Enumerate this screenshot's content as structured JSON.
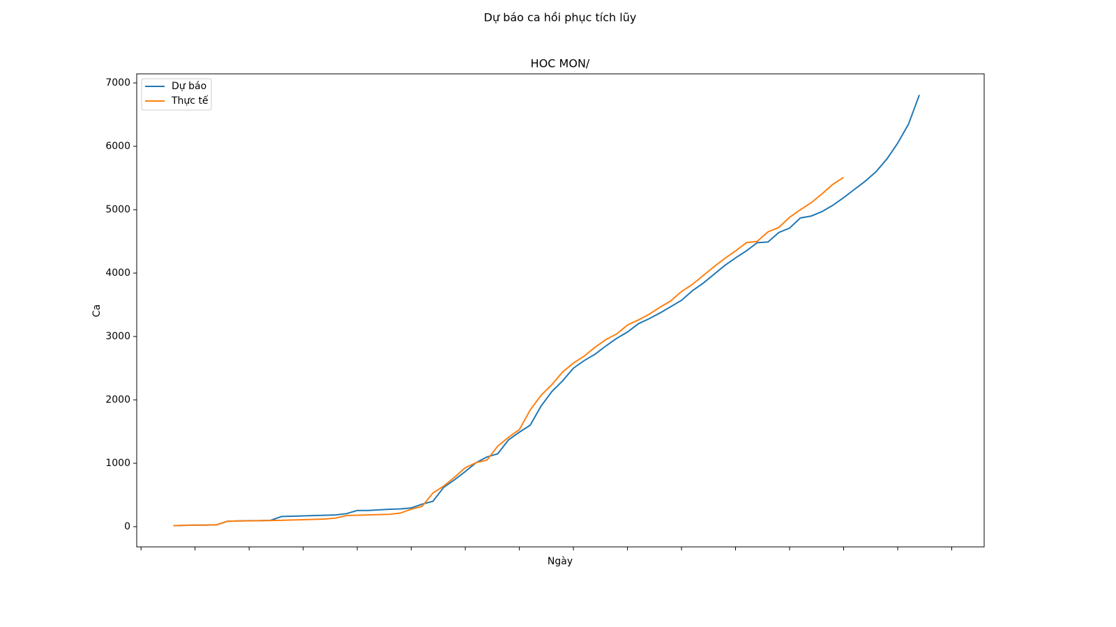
{
  "chart_data": {
    "type": "line",
    "suptitle": "Dự báo ca hồi phục tích lũy",
    "title": "HOC MON/",
    "xlabel": "Ngày",
    "ylabel": "Ca",
    "x": [
      0,
      1,
      2,
      3,
      4,
      5,
      6,
      7,
      8,
      9,
      10,
      11,
      12,
      13,
      14,
      15,
      16,
      17,
      18,
      19,
      20,
      21,
      22,
      23,
      24,
      25,
      26,
      27,
      28,
      29,
      30,
      31,
      32,
      33,
      34,
      35,
      36,
      37,
      38,
      39,
      40,
      41,
      42,
      43,
      44,
      45,
      46,
      47,
      48,
      49,
      50,
      51,
      52,
      53,
      54,
      55,
      56,
      57,
      58,
      59,
      60,
      61,
      62,
      63,
      64,
      65,
      66,
      67,
      68,
      69
    ],
    "series": [
      {
        "name": "Dự báo",
        "color": "#1f77b4",
        "values": [
          15,
          20,
          25,
          25,
          30,
          85,
          90,
          95,
          95,
          100,
          160,
          165,
          170,
          175,
          180,
          185,
          205,
          255,
          255,
          265,
          275,
          280,
          295,
          355,
          400,
          620,
          740,
          870,
          1010,
          1100,
          1150,
          1370,
          1490,
          1600,
          1900,
          2130,
          2300,
          2500,
          2620,
          2720,
          2850,
          2970,
          3070,
          3200,
          3280,
          3370,
          3470,
          3570,
          3720,
          3840,
          3980,
          4120,
          4240,
          4350,
          4480,
          4490,
          4640,
          4710,
          4870,
          4900,
          4970,
          5070,
          5190,
          5320,
          5450,
          5600,
          5800,
          6050,
          6350,
          6810
        ]
      },
      {
        "name": "Thực tế",
        "color": "#ff7f0e",
        "values": [
          15,
          22,
          25,
          25,
          30,
          85,
          90,
          92,
          95,
          97,
          100,
          105,
          110,
          115,
          120,
          135,
          175,
          180,
          185,
          190,
          195,
          215,
          275,
          320,
          530,
          640,
          780,
          930,
          1010,
          1050,
          1270,
          1410,
          1530,
          1840,
          2070,
          2240,
          2440,
          2580,
          2690,
          2830,
          2950,
          3040,
          3180,
          3260,
          3350,
          3460,
          3560,
          3710,
          3820,
          3960,
          4100,
          4230,
          4350,
          4480,
          4500,
          4650,
          4720,
          4880,
          5000,
          5110,
          5250,
          5400,
          5510,
          null,
          null,
          null,
          null,
          null,
          null,
          null
        ]
      }
    ],
    "xlim": [
      -3.4,
      75
    ],
    "xticks": [
      -3,
      2,
      7,
      12,
      17,
      22,
      27,
      32,
      37,
      42,
      47,
      52,
      57,
      62,
      67,
      72
    ],
    "ylim": [
      -319,
      7143
    ],
    "yticks": [
      0,
      1000,
      2000,
      3000,
      4000,
      5000,
      6000,
      7000
    ],
    "legend": "upper left"
  }
}
